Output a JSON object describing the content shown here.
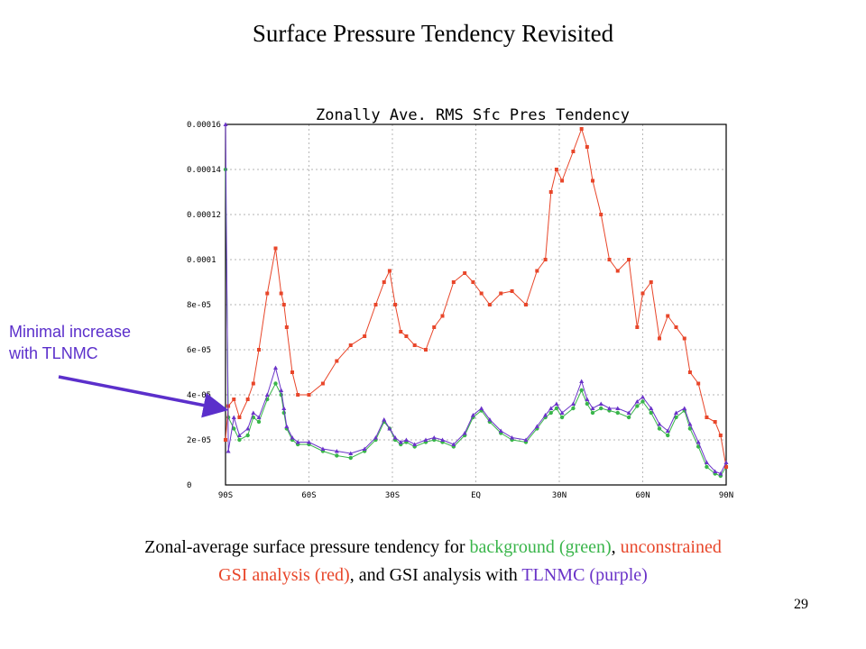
{
  "slide": {
    "title": "Surface Pressure Tendency Revisited",
    "page_number": "29"
  },
  "annotation": {
    "line1": "Minimal increase",
    "line2": "with TLNMC",
    "color": "#5b2fcb"
  },
  "caption": {
    "p1": "Zonal-average surface pressure tendency for ",
    "green": "background (green)",
    "p2": ", ",
    "red1": "unconstrained",
    "red2": "GSI analysis (red)",
    "p3": ", and GSI analysis with ",
    "purple": "TLNMC (purple)"
  },
  "chart_data": {
    "type": "line",
    "title": "Zonally Ave. RMS Sfc Pres Tendency",
    "xlabel": "",
    "ylabel": "",
    "xlim": [
      -90,
      90
    ],
    "ylim": [
      0,
      0.00016
    ],
    "x_ticks": [
      {
        "value": -90,
        "label": "90S"
      },
      {
        "value": -60,
        "label": "60S"
      },
      {
        "value": -30,
        "label": "30S"
      },
      {
        "value": 0,
        "label": "EQ"
      },
      {
        "value": 30,
        "label": "30N"
      },
      {
        "value": 60,
        "label": "60N"
      },
      {
        "value": 90,
        "label": "90N"
      }
    ],
    "y_ticks": [
      {
        "value": 0,
        "label": "0"
      },
      {
        "value": 2e-05,
        "label": "2e-05"
      },
      {
        "value": 4e-05,
        "label": "4e-05"
      },
      {
        "value": 6e-05,
        "label": "6e-05"
      },
      {
        "value": 8e-05,
        "label": "8e-05"
      },
      {
        "value": 0.0001,
        "label": "0.0001"
      },
      {
        "value": 0.00012,
        "label": "0.00012"
      },
      {
        "value": 0.00014,
        "label": "0.00014"
      },
      {
        "value": 0.00016,
        "label": "0.00016"
      }
    ],
    "grid": true,
    "x": [
      -90,
      -89,
      -87,
      -85,
      -82,
      -80,
      -78,
      -75,
      -72,
      -70,
      -69,
      -68,
      -66,
      -64,
      -60,
      -55,
      -50,
      -45,
      -40,
      -36,
      -33,
      -31,
      -29,
      -27,
      -25,
      -22,
      -18,
      -15,
      -12,
      -8,
      -4,
      -1,
      2,
      5,
      9,
      13,
      18,
      22,
      25,
      27,
      29,
      31,
      35,
      38,
      40,
      42,
      45,
      48,
      51,
      55,
      58,
      60,
      63,
      66,
      69,
      72,
      75,
      77,
      80,
      83,
      86,
      88,
      90
    ],
    "series": [
      {
        "color": "#39b54a",
        "values": [
          0.00014,
          3e-05,
          2.5e-05,
          2e-05,
          2.2e-05,
          3e-05,
          2.8e-05,
          3.8e-05,
          4.5e-05,
          4e-05,
          3.2e-05,
          2.5e-05,
          2e-05,
          1.8e-05,
          1.8e-05,
          1.5e-05,
          1.3e-05,
          1.2e-05,
          1.5e-05,
          2e-05,
          2.8e-05,
          2.5e-05,
          2e-05,
          1.8e-05,
          1.9e-05,
          1.7e-05,
          1.9e-05,
          2e-05,
          1.9e-05,
          1.7e-05,
          2.2e-05,
          3e-05,
          3.3e-05,
          2.8e-05,
          2.3e-05,
          2e-05,
          1.9e-05,
          2.5e-05,
          3e-05,
          3.2e-05,
          3.4e-05,
          3e-05,
          3.4e-05,
          4.2e-05,
          3.6e-05,
          3.2e-05,
          3.4e-05,
          3.3e-05,
          3.2e-05,
          3e-05,
          3.5e-05,
          3.7e-05,
          3.2e-05,
          2.5e-05,
          2.2e-05,
          3e-05,
          3.3e-05,
          2.5e-05,
          1.7e-05,
          8e-06,
          5e-06,
          4e-06,
          8e-06
        ]
      },
      {
        "color": "#e8462a",
        "values": [
          2e-05,
          3.5e-05,
          3.8e-05,
          3e-05,
          3.8e-05,
          4.5e-05,
          6e-05,
          8.5e-05,
          0.000105,
          8.5e-05,
          8e-05,
          7e-05,
          5e-05,
          4e-05,
          4e-05,
          4.5e-05,
          5.5e-05,
          6.2e-05,
          6.6e-05,
          8e-05,
          9e-05,
          9.5e-05,
          8e-05,
          6.8e-05,
          6.6e-05,
          6.2e-05,
          6e-05,
          7e-05,
          7.5e-05,
          9e-05,
          9.4e-05,
          9e-05,
          8.5e-05,
          8e-05,
          8.5e-05,
          8.6e-05,
          8e-05,
          9.5e-05,
          0.0001,
          0.00013,
          0.00014,
          0.000135,
          0.000148,
          0.000158,
          0.00015,
          0.000135,
          0.00012,
          0.0001,
          9.5e-05,
          0.0001,
          7e-05,
          8.5e-05,
          9e-05,
          6.5e-05,
          7.5e-05,
          7e-05,
          6.5e-05,
          5e-05,
          4.5e-05,
          3e-05,
          2.8e-05,
          2.2e-05,
          8e-06
        ]
      },
      {
        "color": "#6a33c8",
        "values": [
          0.00016,
          1.5e-05,
          3e-05,
          2.2e-05,
          2.5e-05,
          3.2e-05,
          3e-05,
          4e-05,
          5.2e-05,
          4.2e-05,
          3.4e-05,
          2.6e-05,
          2.1e-05,
          1.9e-05,
          1.9e-05,
          1.6e-05,
          1.5e-05,
          1.4e-05,
          1.6e-05,
          2.1e-05,
          2.9e-05,
          2.5e-05,
          2.1e-05,
          1.9e-05,
          2e-05,
          1.8e-05,
          2e-05,
          2.1e-05,
          2e-05,
          1.8e-05,
          2.3e-05,
          3.1e-05,
          3.4e-05,
          2.9e-05,
          2.4e-05,
          2.1e-05,
          2e-05,
          2.6e-05,
          3.1e-05,
          3.4e-05,
          3.6e-05,
          3.2e-05,
          3.6e-05,
          4.6e-05,
          3.8e-05,
          3.4e-05,
          3.6e-05,
          3.4e-05,
          3.4e-05,
          3.2e-05,
          3.7e-05,
          3.9e-05,
          3.4e-05,
          2.7e-05,
          2.4e-05,
          3.2e-05,
          3.4e-05,
          2.7e-05,
          1.9e-05,
          1e-05,
          6e-06,
          5e-06,
          1e-05
        ]
      }
    ]
  }
}
